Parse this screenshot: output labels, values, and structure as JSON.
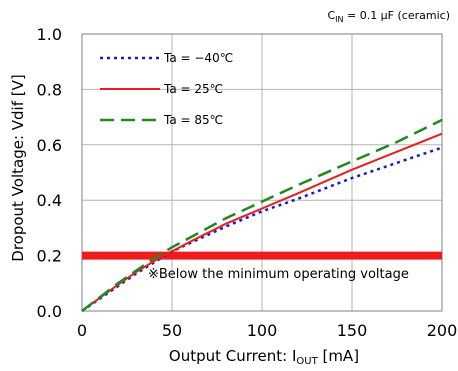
{
  "chart_data": {
    "type": "line",
    "condition": {
      "prefix": "C",
      "sub": "IN",
      "suffix": " = 0.1 μF (ceramic)"
    },
    "xlabel": {
      "prefix": "Output Current: I",
      "sub": "OUT",
      "suffix": " [mA]"
    },
    "ylabel": "Dropout Voltage: Vdif [V]",
    "xlim": [
      0,
      200
    ],
    "ylim": [
      0,
      1.0
    ],
    "xticks": [
      0,
      50,
      100,
      150,
      200
    ],
    "yticks": [
      0.0,
      0.2,
      0.4,
      0.6,
      0.8,
      1.0
    ],
    "xtick_labels": [
      "0",
      "50",
      "100",
      "150",
      "200"
    ],
    "ytick_labels": [
      "0.0",
      "0.2",
      "0.4",
      "0.6",
      "0.8",
      "1.0"
    ],
    "grid": true,
    "legend_position": "top-left",
    "series": [
      {
        "name": "Ta = −40℃",
        "color": "#1a1acc",
        "style": "dotted",
        "x": [
          0,
          10,
          20,
          30,
          40,
          50,
          60,
          80,
          100,
          120,
          150,
          175,
          200
        ],
        "y": [
          0.0,
          0.045,
          0.09,
          0.135,
          0.175,
          0.215,
          0.245,
          0.305,
          0.36,
          0.405,
          0.48,
          0.535,
          0.59
        ]
      },
      {
        "name": "Ta = 25℃",
        "color": "#ee1c1c",
        "style": "solid",
        "x": [
          0,
          10,
          20,
          30,
          40,
          50,
          60,
          80,
          100,
          120,
          150,
          175,
          200
        ],
        "y": [
          0.0,
          0.048,
          0.095,
          0.14,
          0.18,
          0.215,
          0.25,
          0.315,
          0.37,
          0.425,
          0.51,
          0.575,
          0.64
        ]
      },
      {
        "name": "Ta = 85℃",
        "color": "#1d8a1d",
        "style": "dashed",
        "x": [
          0,
          10,
          20,
          30,
          40,
          50,
          60,
          80,
          100,
          120,
          150,
          175,
          200
        ],
        "y": [
          0.0,
          0.05,
          0.1,
          0.145,
          0.19,
          0.23,
          0.265,
          0.335,
          0.395,
          0.455,
          0.54,
          0.61,
          0.69
        ]
      }
    ],
    "threshold": {
      "y": 0.2,
      "color": "#ee1c1c"
    },
    "annotation": "※Below the minimum operating voltage"
  }
}
